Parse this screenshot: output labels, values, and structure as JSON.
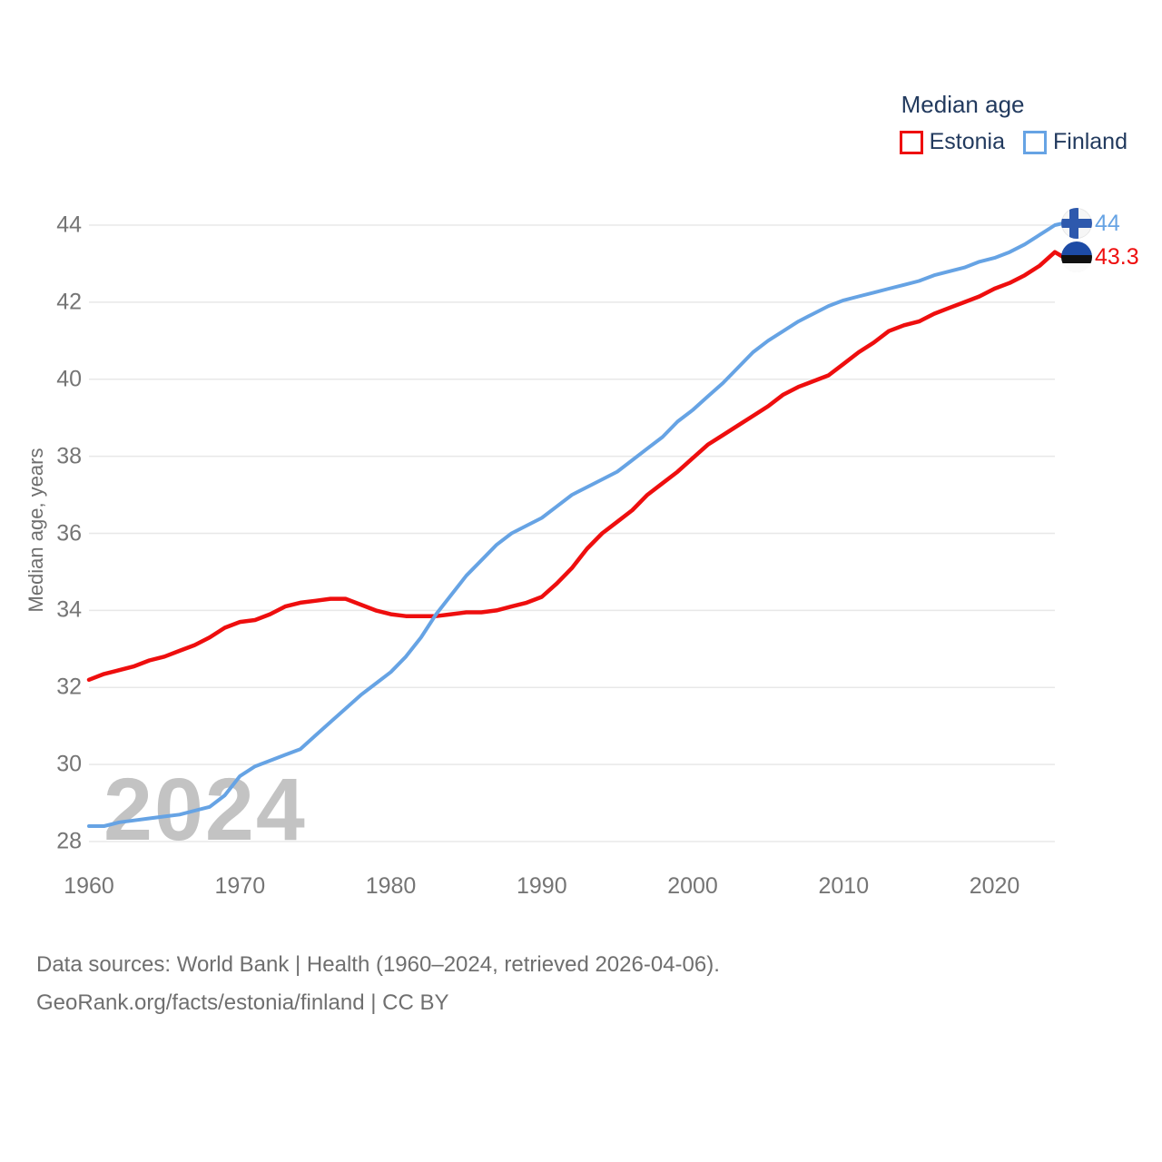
{
  "legend": {
    "title": "Median age",
    "items": [
      {
        "label": "Estonia",
        "color": "#ee0e0e"
      },
      {
        "label": "Finland",
        "color": "#66a3e4"
      }
    ]
  },
  "y_axis": {
    "title": "Median age, years",
    "ticks": [
      44,
      42,
      40,
      38,
      36,
      34,
      32,
      30,
      28
    ]
  },
  "x_axis": {
    "ticks": [
      1960,
      1970,
      1980,
      1990,
      2000,
      2010,
      2020
    ]
  },
  "watermark": "2024",
  "end_labels": [
    {
      "series": "Finland",
      "value": "44",
      "color": "#66a3e4",
      "flag": "finland-flag-icon"
    },
    {
      "series": "Estonia",
      "value": "43.3",
      "color": "#ee0e0e",
      "flag": "estonia-flag-icon"
    }
  ],
  "footer": {
    "line1": "Data sources: World Bank | Health (1960–2024, retrieved 2026-04-06).",
    "line2": "GeoRank.org/facts/estonia/finland | CC BY"
  },
  "chart_data": {
    "type": "line",
    "title": "Median age",
    "ylabel": "Median age, years",
    "x_start": 1960,
    "x_end": 2024,
    "ylim": [
      28,
      44
    ],
    "grid": "horizontal",
    "legend_position": "top-right",
    "series": [
      {
        "name": "Estonia",
        "color": "#ee0e0e",
        "end_label": "43.3",
        "stroke_width": 4.5,
        "values": [
          32.2,
          32.35,
          32.45,
          32.55,
          32.7,
          32.8,
          32.95,
          33.1,
          33.3,
          33.55,
          33.7,
          33.75,
          33.9,
          34.1,
          34.2,
          34.25,
          34.3,
          34.3,
          34.15,
          34.0,
          33.9,
          33.85,
          33.85,
          33.85,
          33.9,
          33.95,
          33.95,
          34.0,
          34.1,
          34.2,
          34.35,
          34.7,
          35.1,
          35.6,
          36.0,
          36.3,
          36.6,
          37.0,
          37.3,
          37.6,
          37.95,
          38.3,
          38.55,
          38.8,
          39.05,
          39.3,
          39.6,
          39.8,
          39.95,
          40.1,
          40.4,
          40.7,
          40.95,
          41.25,
          41.4,
          41.5,
          41.7,
          41.85,
          42.0,
          42.15,
          42.35,
          42.5,
          42.7,
          42.95,
          43.3
        ]
      },
      {
        "name": "Finland",
        "color": "#66a3e4",
        "end_label": "44",
        "stroke_width": 4,
        "values": [
          28.4,
          28.4,
          28.5,
          28.55,
          28.6,
          28.65,
          28.7,
          28.8,
          28.9,
          29.2,
          29.7,
          29.95,
          30.1,
          30.25,
          30.4,
          30.75,
          31.1,
          31.45,
          31.8,
          32.1,
          32.4,
          32.8,
          33.3,
          33.9,
          34.4,
          34.9,
          35.3,
          35.7,
          36.0,
          36.2,
          36.4,
          36.7,
          37.0,
          37.2,
          37.4,
          37.6,
          37.9,
          38.2,
          38.5,
          38.9,
          39.2,
          39.55,
          39.9,
          40.3,
          40.7,
          41.0,
          41.25,
          41.5,
          41.7,
          41.9,
          42.05,
          42.15,
          42.25,
          42.35,
          42.45,
          42.55,
          42.7,
          42.8,
          42.9,
          43.05,
          43.15,
          43.3,
          43.5,
          43.75,
          44.0
        ]
      }
    ]
  }
}
